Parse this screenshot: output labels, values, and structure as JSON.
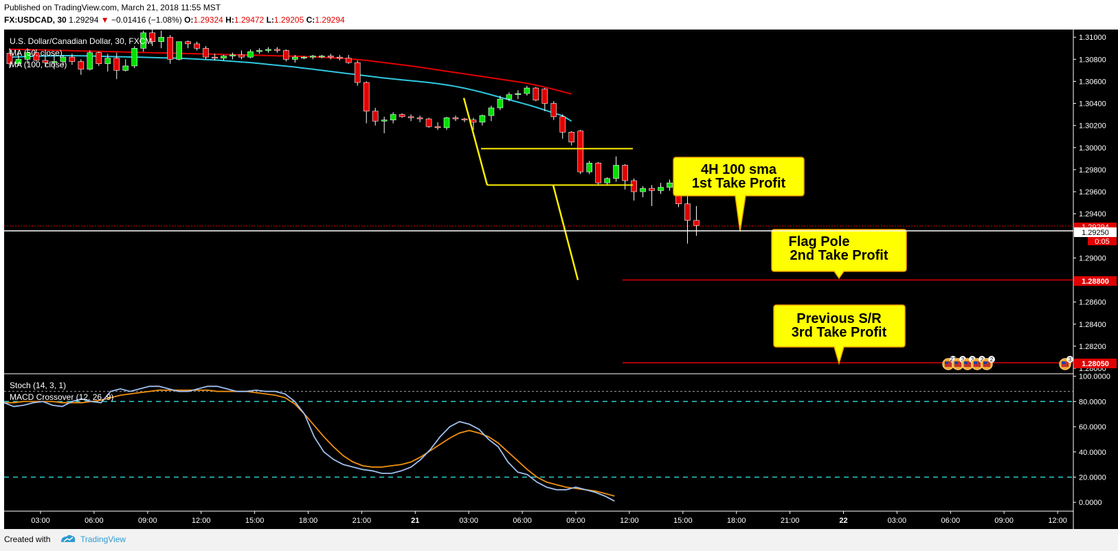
{
  "header": {
    "published": "Published on TradingView.com, March 21, 2018 11:55 MST",
    "symbol": "FX:USDCAD, 30",
    "last": "1.29294",
    "change_arrow": "▼",
    "change": "−0.01416 (−1.08%)",
    "o_label": "O:",
    "o_value": "1.29324",
    "h_label": "H:",
    "h_value": "1.29472",
    "l_label": "L:",
    "l_value": "1.29205",
    "c_label": "C:",
    "c_value": "1.29294"
  },
  "legend": {
    "title": "U.S. Dollar/Canadian Dollar, 30, FXCM",
    "ma50": "MA (50, close)",
    "ma100": "MA (100, close)",
    "stoch": "Stoch (14, 3, 1)",
    "macd": "MACD Crossover (12, 26, 9)"
  },
  "callouts": [
    {
      "line1": "4H 100 sma",
      "line2": "1st Take Profit"
    },
    {
      "line1": "Flag Pole",
      "line2": "2nd Take Profit"
    },
    {
      "line1": "Previous S/R",
      "line2": "3rd Take Profit"
    }
  ],
  "price_badges": [
    {
      "value": "1.29294",
      "color": "#e00000"
    },
    {
      "value": "1.29250",
      "color": "#ffffff"
    },
    {
      "value": "0:05",
      "color": "#e00000"
    },
    {
      "value": "1.28800",
      "color": "#e00000"
    },
    {
      "value": "1.28050",
      "color": "#e00000"
    }
  ],
  "event_badges": [
    "27",
    "3",
    "3",
    "2",
    "2",
    "3"
  ],
  "footer": {
    "created": "Created with",
    "brand": "TradingView"
  },
  "colors": {
    "up": "#00e000",
    "down": "#e00000",
    "ma50": "#e00000",
    "ma100": "#30c8e0",
    "stoch_k": "#a0c0f0",
    "stoch_d": "#f09010",
    "yellow": "#ffee00",
    "background": "#000000"
  },
  "chart_data": [
    {
      "type": "candlestick",
      "title": "U.S. Dollar/Canadian Dollar, 30, FXCM",
      "x_ticks": [
        "03:00",
        "06:00",
        "09:00",
        "12:00",
        "15:00",
        "18:00",
        "21:00",
        "21",
        "03:00",
        "06:00",
        "09:00",
        "12:00",
        "15:00",
        "18:00",
        "21:00",
        "22",
        "03:00",
        "06:00",
        "09:00",
        "12:00"
      ],
      "y_ticks": [
        "1.31000",
        "1.30800",
        "1.30600",
        "1.30400",
        "1.30200",
        "1.30000",
        "1.29800",
        "1.29600",
        "1.29400",
        "1.29000",
        "1.28800",
        "1.28600",
        "1.28400",
        "1.28200",
        "1.28000"
      ],
      "ylim": [
        1.28,
        1.3102
      ],
      "candles": [
        {
          "o": 1.30855,
          "h": 1.309,
          "l": 1.3072,
          "c": 1.3076
        },
        {
          "o": 1.3076,
          "h": 1.3087,
          "l": 1.3074,
          "c": 1.308
        },
        {
          "o": 1.308,
          "h": 1.309,
          "l": 1.3076,
          "c": 1.3086
        },
        {
          "o": 1.3086,
          "h": 1.3089,
          "l": 1.3078,
          "c": 1.3079
        },
        {
          "o": 1.3079,
          "h": 1.3086,
          "l": 1.3073,
          "c": 1.3077
        },
        {
          "o": 1.3077,
          "h": 1.3085,
          "l": 1.3071,
          "c": 1.3078
        },
        {
          "o": 1.3078,
          "h": 1.3084,
          "l": 1.3074,
          "c": 1.3082
        },
        {
          "o": 1.3082,
          "h": 1.3085,
          "l": 1.3075,
          "c": 1.3078
        },
        {
          "o": 1.3078,
          "h": 1.308,
          "l": 1.3066,
          "c": 1.3071
        },
        {
          "o": 1.3071,
          "h": 1.3088,
          "l": 1.307,
          "c": 1.3086
        },
        {
          "o": 1.3086,
          "h": 1.3087,
          "l": 1.3074,
          "c": 1.3076
        },
        {
          "o": 1.3076,
          "h": 1.3085,
          "l": 1.3069,
          "c": 1.3081
        },
        {
          "o": 1.3081,
          "h": 1.3086,
          "l": 1.3062,
          "c": 1.307
        },
        {
          "o": 1.307,
          "h": 1.308,
          "l": 1.3069,
          "c": 1.3074
        },
        {
          "o": 1.3074,
          "h": 1.3092,
          "l": 1.3072,
          "c": 1.309
        },
        {
          "o": 1.309,
          "h": 1.3106,
          "l": 1.3087,
          "c": 1.3104
        },
        {
          "o": 1.3104,
          "h": 1.3108,
          "l": 1.3092,
          "c": 1.3096
        },
        {
          "o": 1.3096,
          "h": 1.3106,
          "l": 1.309,
          "c": 1.31
        },
        {
          "o": 1.31,
          "h": 1.3102,
          "l": 1.3076,
          "c": 1.308
        },
        {
          "o": 1.308,
          "h": 1.3096,
          "l": 1.3079,
          "c": 1.3096
        },
        {
          "o": 1.3096,
          "h": 1.3097,
          "l": 1.309,
          "c": 1.3094
        },
        {
          "o": 1.3094,
          "h": 1.3096,
          "l": 1.3088,
          "c": 1.309
        },
        {
          "o": 1.309,
          "h": 1.3092,
          "l": 1.308,
          "c": 1.3082
        },
        {
          "o": 1.3082,
          "h": 1.3085,
          "l": 1.3079,
          "c": 1.3081
        },
        {
          "o": 1.3081,
          "h": 1.3084,
          "l": 1.3079,
          "c": 1.3083
        },
        {
          "o": 1.3083,
          "h": 1.3086,
          "l": 1.308,
          "c": 1.3084
        },
        {
          "o": 1.3084,
          "h": 1.3088,
          "l": 1.308,
          "c": 1.3082
        },
        {
          "o": 1.3082,
          "h": 1.3089,
          "l": 1.3081,
          "c": 1.3087
        },
        {
          "o": 1.3087,
          "h": 1.309,
          "l": 1.3085,
          "c": 1.3088
        },
        {
          "o": 1.3088,
          "h": 1.3091,
          "l": 1.3086,
          "c": 1.3089
        },
        {
          "o": 1.3089,
          "h": 1.3091,
          "l": 1.3086,
          "c": 1.3088
        },
        {
          "o": 1.3088,
          "h": 1.3089,
          "l": 1.3078,
          "c": 1.308
        },
        {
          "o": 1.308,
          "h": 1.3084,
          "l": 1.3077,
          "c": 1.3082
        },
        {
          "o": 1.3082,
          "h": 1.3083,
          "l": 1.308,
          "c": 1.3082
        },
        {
          "o": 1.3082,
          "h": 1.3084,
          "l": 1.308,
          "c": 1.3083
        },
        {
          "o": 1.3083,
          "h": 1.3084,
          "l": 1.3081,
          "c": 1.3083
        },
        {
          "o": 1.3083,
          "h": 1.3085,
          "l": 1.308,
          "c": 1.3082
        },
        {
          "o": 1.3082,
          "h": 1.3084,
          "l": 1.3079,
          "c": 1.3081
        },
        {
          "o": 1.3081,
          "h": 1.3084,
          "l": 1.3076,
          "c": 1.3077
        },
        {
          "o": 1.3077,
          "h": 1.3079,
          "l": 1.3056,
          "c": 1.3059
        },
        {
          "o": 1.3059,
          "h": 1.306,
          "l": 1.3022,
          "c": 1.3033
        },
        {
          "o": 1.3033,
          "h": 1.3036,
          "l": 1.302,
          "c": 1.3024
        },
        {
          "o": 1.3024,
          "h": 1.3028,
          "l": 1.3013,
          "c": 1.3025
        },
        {
          "o": 1.3025,
          "h": 1.3032,
          "l": 1.3022,
          "c": 1.303
        },
        {
          "o": 1.303,
          "h": 1.3031,
          "l": 1.3027,
          "c": 1.3028
        },
        {
          "o": 1.3028,
          "h": 1.303,
          "l": 1.3024,
          "c": 1.3027
        },
        {
          "o": 1.3027,
          "h": 1.3029,
          "l": 1.3023,
          "c": 1.3026
        },
        {
          "o": 1.3026,
          "h": 1.3027,
          "l": 1.3018,
          "c": 1.3019
        },
        {
          "o": 1.3019,
          "h": 1.3023,
          "l": 1.3016,
          "c": 1.3018
        },
        {
          "o": 1.3018,
          "h": 1.3028,
          "l": 1.3016,
          "c": 1.3027
        },
        {
          "o": 1.3027,
          "h": 1.3029,
          "l": 1.3024,
          "c": 1.3026
        },
        {
          "o": 1.3026,
          "h": 1.3027,
          "l": 1.3023,
          "c": 1.3025
        },
        {
          "o": 1.3025,
          "h": 1.3027,
          "l": 1.3016,
          "c": 1.3023
        },
        {
          "o": 1.3023,
          "h": 1.303,
          "l": 1.302,
          "c": 1.3029
        },
        {
          "o": 1.3029,
          "h": 1.3038,
          "l": 1.3024,
          "c": 1.3036
        },
        {
          "o": 1.3036,
          "h": 1.3047,
          "l": 1.3034,
          "c": 1.3044
        },
        {
          "o": 1.3044,
          "h": 1.305,
          "l": 1.3042,
          "c": 1.3048
        },
        {
          "o": 1.3048,
          "h": 1.3052,
          "l": 1.3044,
          "c": 1.3049
        },
        {
          "o": 1.3049,
          "h": 1.3056,
          "l": 1.3047,
          "c": 1.3054
        },
        {
          "o": 1.3054,
          "h": 1.3055,
          "l": 1.3042,
          "c": 1.3043
        },
        {
          "o": 1.3053,
          "h": 1.3054,
          "l": 1.3033,
          "c": 1.304
        },
        {
          "o": 1.304,
          "h": 1.3042,
          "l": 1.3025,
          "c": 1.3028
        },
        {
          "o": 1.3028,
          "h": 1.303,
          "l": 1.3008,
          "c": 1.3014
        },
        {
          "o": 1.3014,
          "h": 1.3015,
          "l": 1.3002,
          "c": 1.3005
        },
        {
          "o": 1.3015,
          "h": 1.3016,
          "l": 1.2976,
          "c": 1.2978
        },
        {
          "o": 1.2978,
          "h": 1.2988,
          "l": 1.2976,
          "c": 1.2986
        },
        {
          "o": 1.2986,
          "h": 1.2987,
          "l": 1.2966,
          "c": 1.2968
        },
        {
          "o": 1.2968,
          "h": 1.2973,
          "l": 1.2966,
          "c": 1.2972
        },
        {
          "o": 1.2972,
          "h": 1.2992,
          "l": 1.2969,
          "c": 1.2984
        },
        {
          "o": 1.2984,
          "h": 1.2985,
          "l": 1.2962,
          "c": 1.297
        },
        {
          "o": 1.297,
          "h": 1.2972,
          "l": 1.2952,
          "c": 1.296
        },
        {
          "o": 1.296,
          "h": 1.2965,
          "l": 1.2955,
          "c": 1.2963
        },
        {
          "o": 1.2963,
          "h": 1.2966,
          "l": 1.2947,
          "c": 1.2961
        },
        {
          "o": 1.2961,
          "h": 1.2968,
          "l": 1.2958,
          "c": 1.2964
        },
        {
          "o": 1.2964,
          "h": 1.2971,
          "l": 1.2961,
          "c": 1.2968
        },
        {
          "o": 1.2966,
          "h": 1.2967,
          "l": 1.2946,
          "c": 1.2949
        },
        {
          "o": 1.2949,
          "h": 1.297,
          "l": 1.2913,
          "c": 1.2934
        },
        {
          "o": 1.2934,
          "h": 1.2947,
          "l": 1.292,
          "c": 1.29294
        }
      ],
      "ma50": [
        1.3089,
        1.3089,
        1.30888,
        1.30886,
        1.30884,
        1.30882,
        1.3088,
        1.30878,
        1.30876,
        1.30874,
        1.30872,
        1.3087,
        1.30868,
        1.30866,
        1.30864,
        1.30862,
        1.3086,
        1.30858,
        1.30856,
        1.30854,
        1.30852,
        1.3085,
        1.30848,
        1.30846,
        1.30844,
        1.30842,
        1.3084,
        1.30838,
        1.30836,
        1.30834,
        1.30832,
        1.3083,
        1.30828,
        1.30825,
        1.30822,
        1.30818,
        1.30814,
        1.3081,
        1.30805,
        1.30798,
        1.3079,
        1.3078,
        1.3077,
        1.3076,
        1.3075,
        1.3074,
        1.30728,
        1.30716,
        1.30704,
        1.30692,
        1.3068,
        1.30668,
        1.30656,
        1.30644,
        1.30632,
        1.3062,
        1.30608,
        1.30596,
        1.30582,
        1.30566,
        1.30548,
        1.30528,
        1.30506,
        1.30486
      ],
      "ma100": [
        1.3082,
        1.30822,
        1.30825,
        1.30828,
        1.3083,
        1.30832,
        1.30833,
        1.30833,
        1.30832,
        1.3083,
        1.30828,
        1.30826,
        1.30824,
        1.30822,
        1.3082,
        1.30818,
        1.30816,
        1.30814,
        1.30812,
        1.3081,
        1.30806,
        1.30802,
        1.30798,
        1.30794,
        1.30788,
        1.30782,
        1.30776,
        1.3077,
        1.30762,
        1.30754,
        1.30746,
        1.30738,
        1.3073,
        1.3072,
        1.3071,
        1.307,
        1.3069,
        1.3068,
        1.3067,
        1.3066,
        1.3065,
        1.3064,
        1.3063,
        1.30622,
        1.30614,
        1.30606,
        1.30598,
        1.3059,
        1.3058,
        1.30568,
        1.30554,
        1.30538,
        1.3052,
        1.305,
        1.30478,
        1.30456,
        1.30434,
        1.30412,
        1.3039,
        1.30366,
        1.3034,
        1.30314,
        1.30288,
        1.3024
      ],
      "hlines": [
        1.2999,
        1.2966,
        1.288,
        1.2805
      ],
      "flag_pole": [
        [
          1.3045,
          1.2966
        ],
        [
          1.2966,
          1.288
        ]
      ]
    },
    {
      "type": "line",
      "title": "Stoch (14, 3, 1)",
      "y_ticks": [
        "100.0000",
        "80.0000",
        "60.0000",
        "40.0000",
        "20.0000",
        "0.0000"
      ],
      "ylim": [
        -7,
        102
      ],
      "levels": [
        80,
        20
      ],
      "series": [
        {
          "name": "%K",
          "values": [
            79,
            76,
            77,
            79,
            80,
            77,
            76,
            80,
            82,
            80,
            79,
            88,
            90,
            88,
            90,
            92,
            92,
            90,
            88,
            88,
            90,
            92,
            92,
            90,
            88,
            88,
            89,
            88,
            88,
            86,
            80,
            70,
            52,
            40,
            34,
            30,
            28,
            26,
            25,
            23,
            23,
            25,
            28,
            34,
            42,
            52,
            60,
            64,
            62,
            58,
            50,
            44,
            32,
            24,
            22,
            16,
            12,
            10,
            10,
            12,
            10,
            8,
            5,
            1
          ]
        },
        {
          "name": "%D",
          "values": [
            79,
            79,
            80,
            80,
            80,
            80,
            79,
            79,
            79,
            80,
            81,
            83,
            85,
            86,
            87,
            88,
            89,
            89,
            89,
            89,
            89,
            89,
            88,
            88,
            88,
            88,
            87,
            86,
            85,
            83,
            78,
            70,
            61,
            52,
            44,
            37,
            32,
            29,
            28,
            28,
            29,
            30,
            32,
            36,
            41,
            46,
            51,
            55,
            57,
            55,
            52,
            47,
            40,
            33,
            26,
            20,
            16,
            14,
            12,
            11,
            10,
            9,
            7,
            5
          ]
        }
      ]
    }
  ]
}
